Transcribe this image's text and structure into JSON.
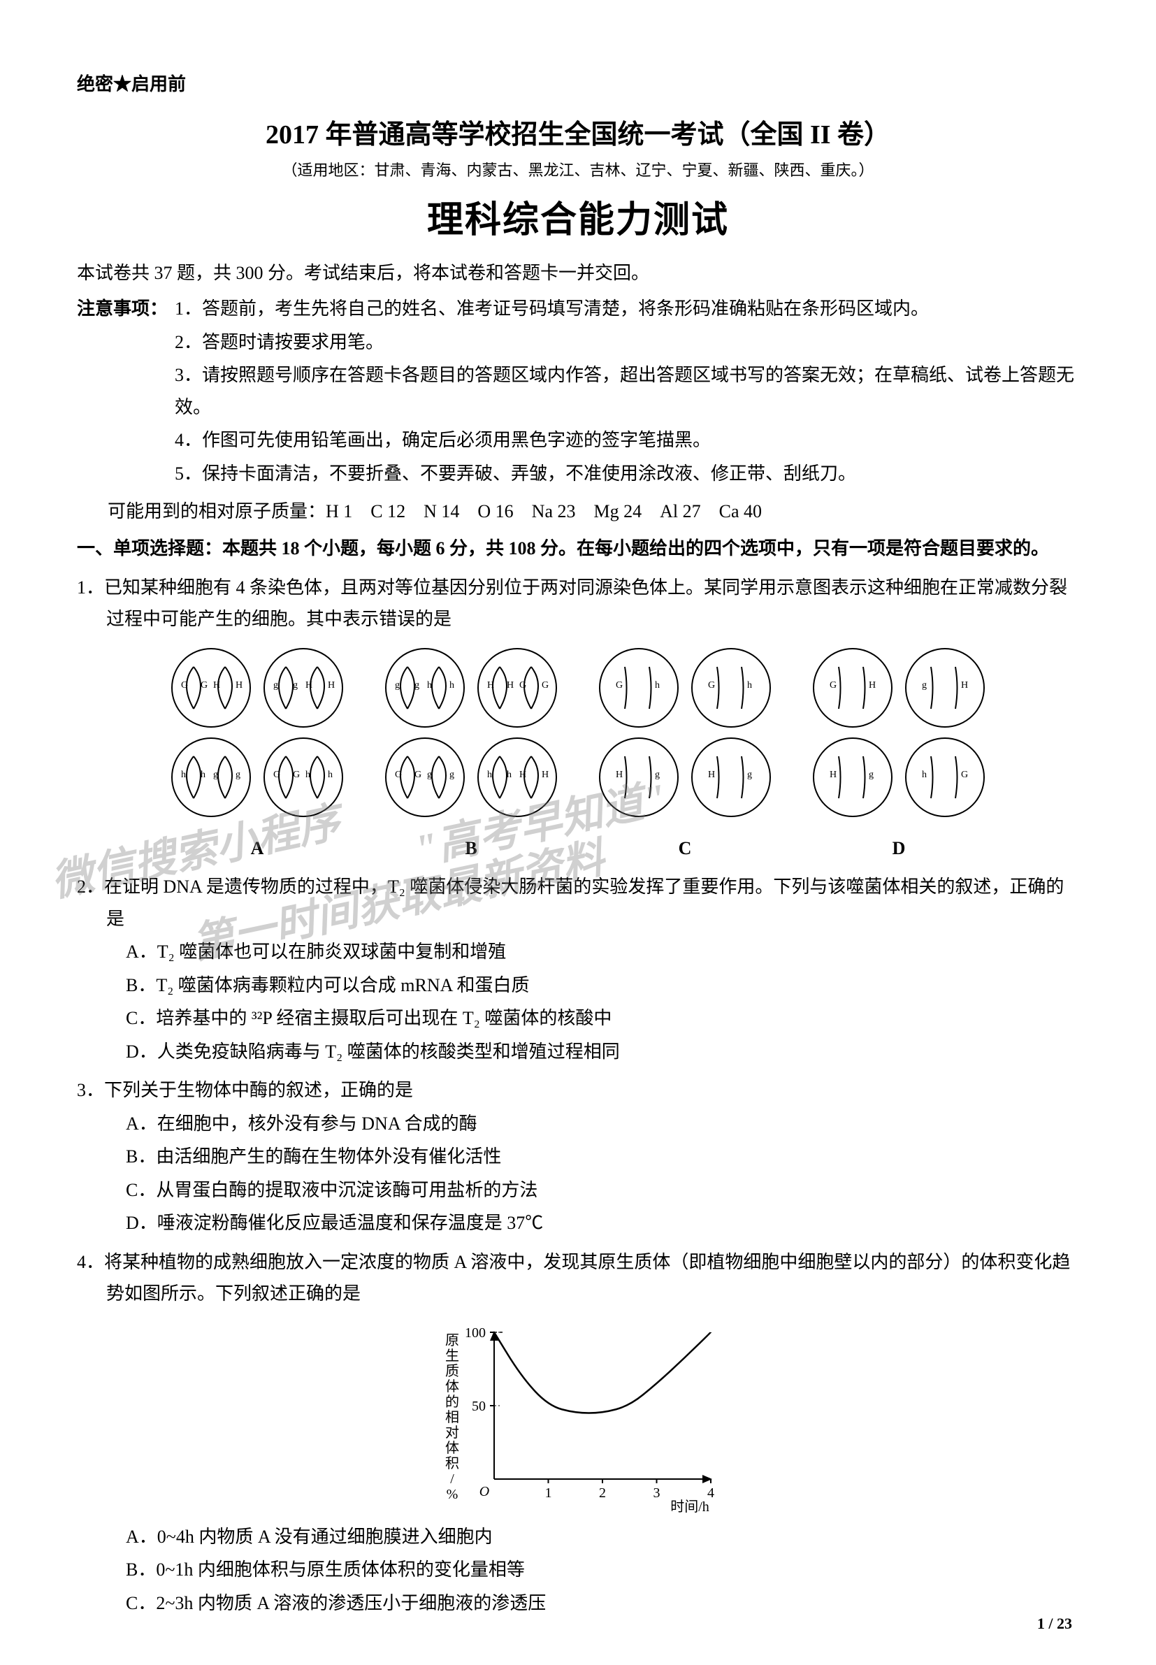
{
  "header": {
    "confidential": "绝密★启用前",
    "title": "2017 年普通高等学校招生全国统一考试（全国 II 卷）",
    "applicable": "（适用地区：甘肃、青海、内蒙古、黑龙江、吉林、辽宁、宁夏、新疆、陕西、重庆。）",
    "subject": "理科综合能力测试"
  },
  "intro": "本试卷共 37 题，共 300 分。考试结束后，将本试卷和答题卡一并交回。",
  "notice": {
    "label": "注意事项：",
    "items": [
      "1．答题前，考生先将自己的姓名、准考证号码填写清楚，将条形码准确粘贴在条形码区域内。",
      "2．答题时请按要求用笔。",
      "3．请按照题号顺序在答题卡各题目的答题区域内作答，超出答题区域书写的答案无效；在草稿纸、试卷上答题无效。",
      "4．作图可先使用铅笔画出，确定后必须用黑色字迹的签字笔描黑。",
      "5．保持卡面清洁，不要折叠、不要弄破、弄皱，不准使用涂改液、修正带、刮纸刀。"
    ]
  },
  "atomic_mass": "可能用到的相对原子质量：H 1　C 12　N 14　O 16　Na 23　Mg 24　Al 27　Ca 40",
  "section1": "一、单项选择题：本题共 18 个小题，每小题 6 分，共 108 分。在每小题给出的四个选项中，只有一项是符合题目要求的。",
  "q1": {
    "stem": "1．已知某种细胞有 4 条染色体，且两对等位基因分别位于两对同源染色体上。某同学用示意图表示这种细胞在正常减数分裂过程中可能产生的细胞。其中表示错误的是",
    "labels": [
      "A",
      "B",
      "C",
      "D"
    ]
  },
  "q2": {
    "stem": "2．在证明 DNA 是遗传物质的过程中，T₂ 噬菌体侵染大肠杆菌的实验发挥了重要作用。下列与该噬菌体相关的叙述，正确的是",
    "options": [
      "A．T₂ 噬菌体也可以在肺炎双球菌中复制和增殖",
      "B．T₂ 噬菌体病毒颗粒内可以合成 mRNA 和蛋白质",
      "C．培养基中的 ³²P 经宿主摄取后可出现在 T₂ 噬菌体的核酸中",
      "D．人类免疫缺陷病毒与 T₂ 噬菌体的核酸类型和增殖过程相同"
    ]
  },
  "q3": {
    "stem": "3．下列关于生物体中酶的叙述，正确的是",
    "options": [
      "A．在细胞中，核外没有参与 DNA 合成的酶",
      "B．由活细胞产生的酶在生物体外没有催化活性",
      "C．从胃蛋白酶的提取液中沉淀该酶可用盐析的方法",
      "D．唾液淀粉酶催化反应最适温度和保存温度是 37℃"
    ]
  },
  "q4": {
    "stem": "4．将某种植物的成熟细胞放入一定浓度的物质 A 溶液中，发现其原生质体（即植物细胞中细胞壁以内的部分）的体积变化趋势如图所示。下列叙述正确的是",
    "options": [
      "A．0~4h 内物质 A 没有通过细胞膜进入细胞内",
      "B．0~1h 内细胞体积与原生质体体积的变化量相等",
      "C．2~3h 内物质 A 溶液的渗透压小于细胞液的渗透压"
    ],
    "chart": {
      "type": "line",
      "xlabel": "时间/h",
      "ylabel": "原生质体的相对体积/%",
      "ylim": [
        0,
        100
      ],
      "yticks": [
        0,
        50,
        100
      ],
      "xlim": [
        0,
        4
      ],
      "xticks": [
        0,
        1,
        2,
        3,
        4
      ],
      "points": [
        [
          0,
          100
        ],
        [
          0.5,
          70
        ],
        [
          1,
          50
        ],
        [
          1.5,
          45
        ],
        [
          2,
          45
        ],
        [
          2.5,
          50
        ],
        [
          3,
          65
        ],
        [
          3.5,
          82
        ],
        [
          4,
          100
        ]
      ],
      "line_color": "#000000",
      "line_width": 2.5,
      "axis_color": "#000000",
      "background": "#ffffff",
      "label_fontsize": 20,
      "tick_fontsize": 20
    }
  },
  "watermarks": {
    "wm1": "微信搜索小程序",
    "wm2": "\"高考早知道\"",
    "wm3": "第一时间获取最新资料"
  },
  "page_num": "1 / 23",
  "colors": {
    "text": "#000000",
    "background": "#ffffff",
    "watermark": "rgba(120,120,120,0.35)"
  }
}
